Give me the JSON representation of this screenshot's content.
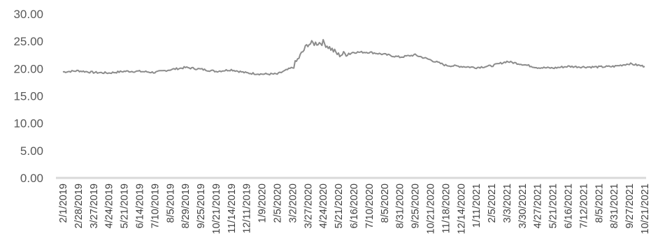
{
  "chart_data": {
    "type": "line",
    "title": "",
    "xlabel": "",
    "ylabel": "",
    "ylim": [
      0,
      30
    ],
    "yticks": [
      "0.00",
      "5.00",
      "10.00",
      "15.00",
      "20.00",
      "25.00",
      "30.00"
    ],
    "grid": false,
    "legend": "none",
    "colors": {
      "line": "#8c8c8c",
      "axis": "#d9d9d9",
      "text": "#595959"
    },
    "x_tick_labels": [
      "2/1/2019",
      "2/28/2019",
      "3/27/2019",
      "4/24/2019",
      "5/21/2019",
      "6/14/2019",
      "7/10/2019",
      "8/5/2019",
      "8/29/2019",
      "9/25/2019",
      "10/21/2019",
      "11/14/2019",
      "12/11/2019",
      "1/9/2020",
      "2/5/2020",
      "3/2/2020",
      "3/27/2020",
      "4/24/2020",
      "5/21/2020",
      "6/16/2020",
      "7/10/2020",
      "8/5/2020",
      "8/31/2020",
      "9/25/2020",
      "10/21/2020",
      "11/18/2020",
      "12/14/2020",
      "1/11/2021",
      "2/5/2021",
      "3/3/2021",
      "3/30/2021",
      "4/27/2021",
      "5/21/2021",
      "6/16/2021",
      "7/12/2021",
      "8/5/2021",
      "8/31/2021",
      "9/27/2021",
      "10/21/2021"
    ],
    "series": [
      {
        "x": [
          "2/1/2019",
          "2/28/2019",
          "3/27/2019",
          "4/24/2019",
          "5/21/2019",
          "6/14/2019",
          "7/10/2019",
          "8/5/2019",
          "8/29/2019",
          "9/25/2019",
          "10/21/2019",
          "11/14/2019",
          "12/11/2019",
          "1/9/2020",
          "2/5/2020",
          "3/2/2020",
          "3/27/2020",
          "4/24/2020",
          "5/21/2020",
          "6/16/2020",
          "7/10/2020",
          "8/5/2020",
          "8/31/2020",
          "9/25/2020",
          "10/21/2020",
          "11/18/2020",
          "12/14/2020",
          "1/11/2021",
          "2/5/2021",
          "3/3/2021",
          "3/30/2021",
          "4/27/2021",
          "5/21/2021",
          "6/16/2021",
          "7/12/2021",
          "8/5/2021",
          "8/31/2021",
          "9/27/2021",
          "10/21/2021"
        ],
        "values": [
          19.4,
          19.6,
          19.3,
          19.2,
          19.5,
          19.5,
          19.3,
          19.8,
          20.2,
          19.9,
          19.5,
          19.8,
          19.2,
          19.0,
          19.0,
          20.2,
          24.5,
          24.8,
          22.5,
          23.0,
          23.0,
          22.6,
          22.1,
          22.5,
          21.6,
          20.6,
          20.4,
          20.2,
          20.5,
          21.3,
          20.8,
          20.2,
          20.1,
          20.4,
          20.3,
          20.3,
          20.4,
          20.9,
          20.4
        ]
      }
    ]
  }
}
